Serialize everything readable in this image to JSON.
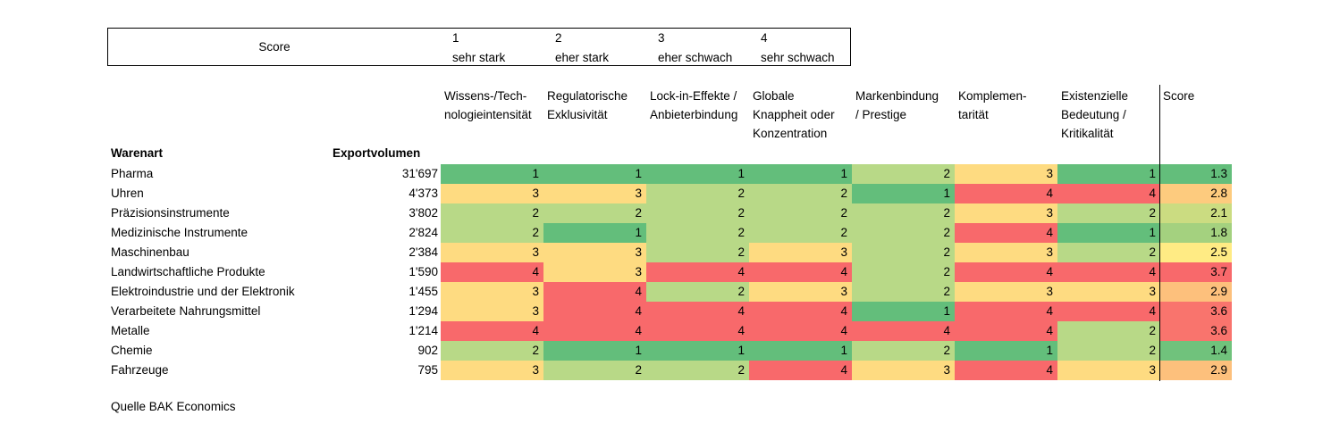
{
  "legend": {
    "title": "Score",
    "items": [
      {
        "num": "1",
        "label": "sehr stark"
      },
      {
        "num": "2",
        "label": "eher stark"
      },
      {
        "num": "3",
        "label": "eher schwach"
      },
      {
        "num": "4",
        "label": "sehr schwach"
      }
    ]
  },
  "colors": {
    "1": "#63be7b",
    "2": "#b8d987",
    "3": "#fedb81",
    "4": "#f8696b",
    "score_low": "#63be7b",
    "score_mid": "#ffeb84",
    "score_high": "#f8696b"
  },
  "chart_data": {
    "type": "heatmap",
    "row_header": "Warenart",
    "volume_header": "Exportvolumen",
    "columns": [
      [
        "Wissens-/Tech-",
        "nologieintensität"
      ],
      [
        "Regulatorische",
        "Exklusivität"
      ],
      [
        "Lock-in-Effekte /",
        "Anbieterbindung"
      ],
      [
        "Globale",
        "Knappheit oder",
        "Konzentration"
      ],
      [
        "Markenbindung",
        "/ Prestige"
      ],
      [
        "Komplemen-",
        "tarität"
      ],
      [
        "Existenzielle",
        "Bedeutung /",
        "Kritikalität"
      ]
    ],
    "score_header": "Score",
    "rows": [
      {
        "name": "Pharma",
        "volume": "31'697",
        "values": [
          1,
          1,
          1,
          1,
          2,
          3,
          1
        ],
        "score": "1.3"
      },
      {
        "name": "Uhren",
        "volume": "4'373",
        "values": [
          3,
          3,
          2,
          2,
          1,
          4,
          4
        ],
        "score": "2.8"
      },
      {
        "name": "Präzisionsinstrumente",
        "volume": "3'802",
        "values": [
          2,
          2,
          2,
          2,
          2,
          3,
          2
        ],
        "score": "2.1"
      },
      {
        "name": "Medizinische Instrumente",
        "volume": "2'824",
        "values": [
          2,
          1,
          2,
          2,
          2,
          4,
          1
        ],
        "score": "1.8"
      },
      {
        "name": "Maschinenbau",
        "volume": "2'384",
        "values": [
          3,
          3,
          2,
          3,
          2,
          3,
          2
        ],
        "score": "2.5"
      },
      {
        "name": "Landwirtschaftliche Produkte",
        "volume": "1'590",
        "values": [
          4,
          3,
          4,
          4,
          2,
          4,
          4
        ],
        "score": "3.7"
      },
      {
        "name": "Elektroindustrie und der Elektronik",
        "volume": "1'455",
        "values": [
          3,
          4,
          2,
          3,
          2,
          3,
          3
        ],
        "score": "2.9"
      },
      {
        "name": "Verarbeitete Nahrungsmittel",
        "volume": "1'294",
        "values": [
          3,
          4,
          4,
          4,
          1,
          4,
          4
        ],
        "score": "3.6"
      },
      {
        "name": "Metalle",
        "volume": "1'214",
        "values": [
          4,
          4,
          4,
          4,
          4,
          4,
          2
        ],
        "score": "3.6"
      },
      {
        "name": "Chemie",
        "volume": "902",
        "values": [
          2,
          1,
          1,
          1,
          2,
          1,
          2
        ],
        "score": "1.4"
      },
      {
        "name": "Fahrzeuge",
        "volume": "795",
        "values": [
          3,
          2,
          2,
          4,
          3,
          4,
          3
        ],
        "score": "2.9"
      }
    ]
  },
  "source": "Quelle BAK Economics"
}
